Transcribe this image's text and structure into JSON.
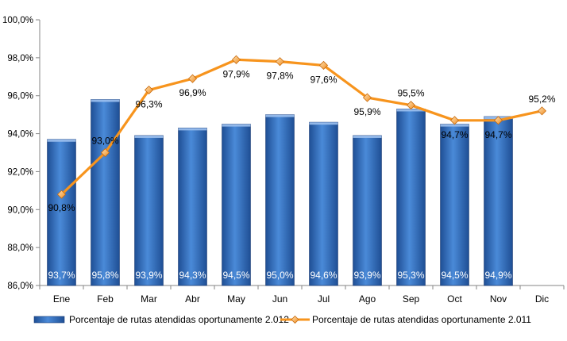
{
  "chart_data": {
    "type": "bar+line",
    "categories": [
      "Ene",
      "Feb",
      "Mar",
      "Abr",
      "May",
      "Jun",
      "Jul",
      "Ago",
      "Sep",
      "Oct",
      "Nov",
      "Dic"
    ],
    "series": [
      {
        "name": "Porcentaje de rutas atendidas oportunamente 2.012",
        "type": "bar",
        "values": [
          93.7,
          95.8,
          93.9,
          94.3,
          94.5,
          95.0,
          94.6,
          93.9,
          95.3,
          94.5,
          94.9,
          null
        ],
        "labels": [
          "93,7%",
          "95,8%",
          "93,9%",
          "94,3%",
          "94,5%",
          "95,0%",
          "94,6%",
          "93,9%",
          "95,3%",
          "94,5%",
          "94,9%",
          ""
        ],
        "color": "#2f6fc0"
      },
      {
        "name": "Porcentaje de rutas atendidas oportunamente 2.011",
        "type": "line",
        "values": [
          90.8,
          93.0,
          96.3,
          96.9,
          97.9,
          97.8,
          97.6,
          95.9,
          95.5,
          94.7,
          94.7,
          95.2
        ],
        "labels": [
          "90,8%",
          "93,0%",
          "96,3%",
          "96,9%",
          "97,9%",
          "97,8%",
          "97,6%",
          "95,9%",
          "95,5%",
          "94,7%",
          "94,7%",
          "95,2%"
        ],
        "color": "#f7941d"
      }
    ],
    "ylim": [
      86,
      100
    ],
    "yticks": [
      "86,0%",
      "88,0%",
      "90,0%",
      "92,0%",
      "94,0%",
      "96,0%",
      "98,0%",
      "100,0%"
    ],
    "grid": false,
    "legend": "bottom"
  }
}
